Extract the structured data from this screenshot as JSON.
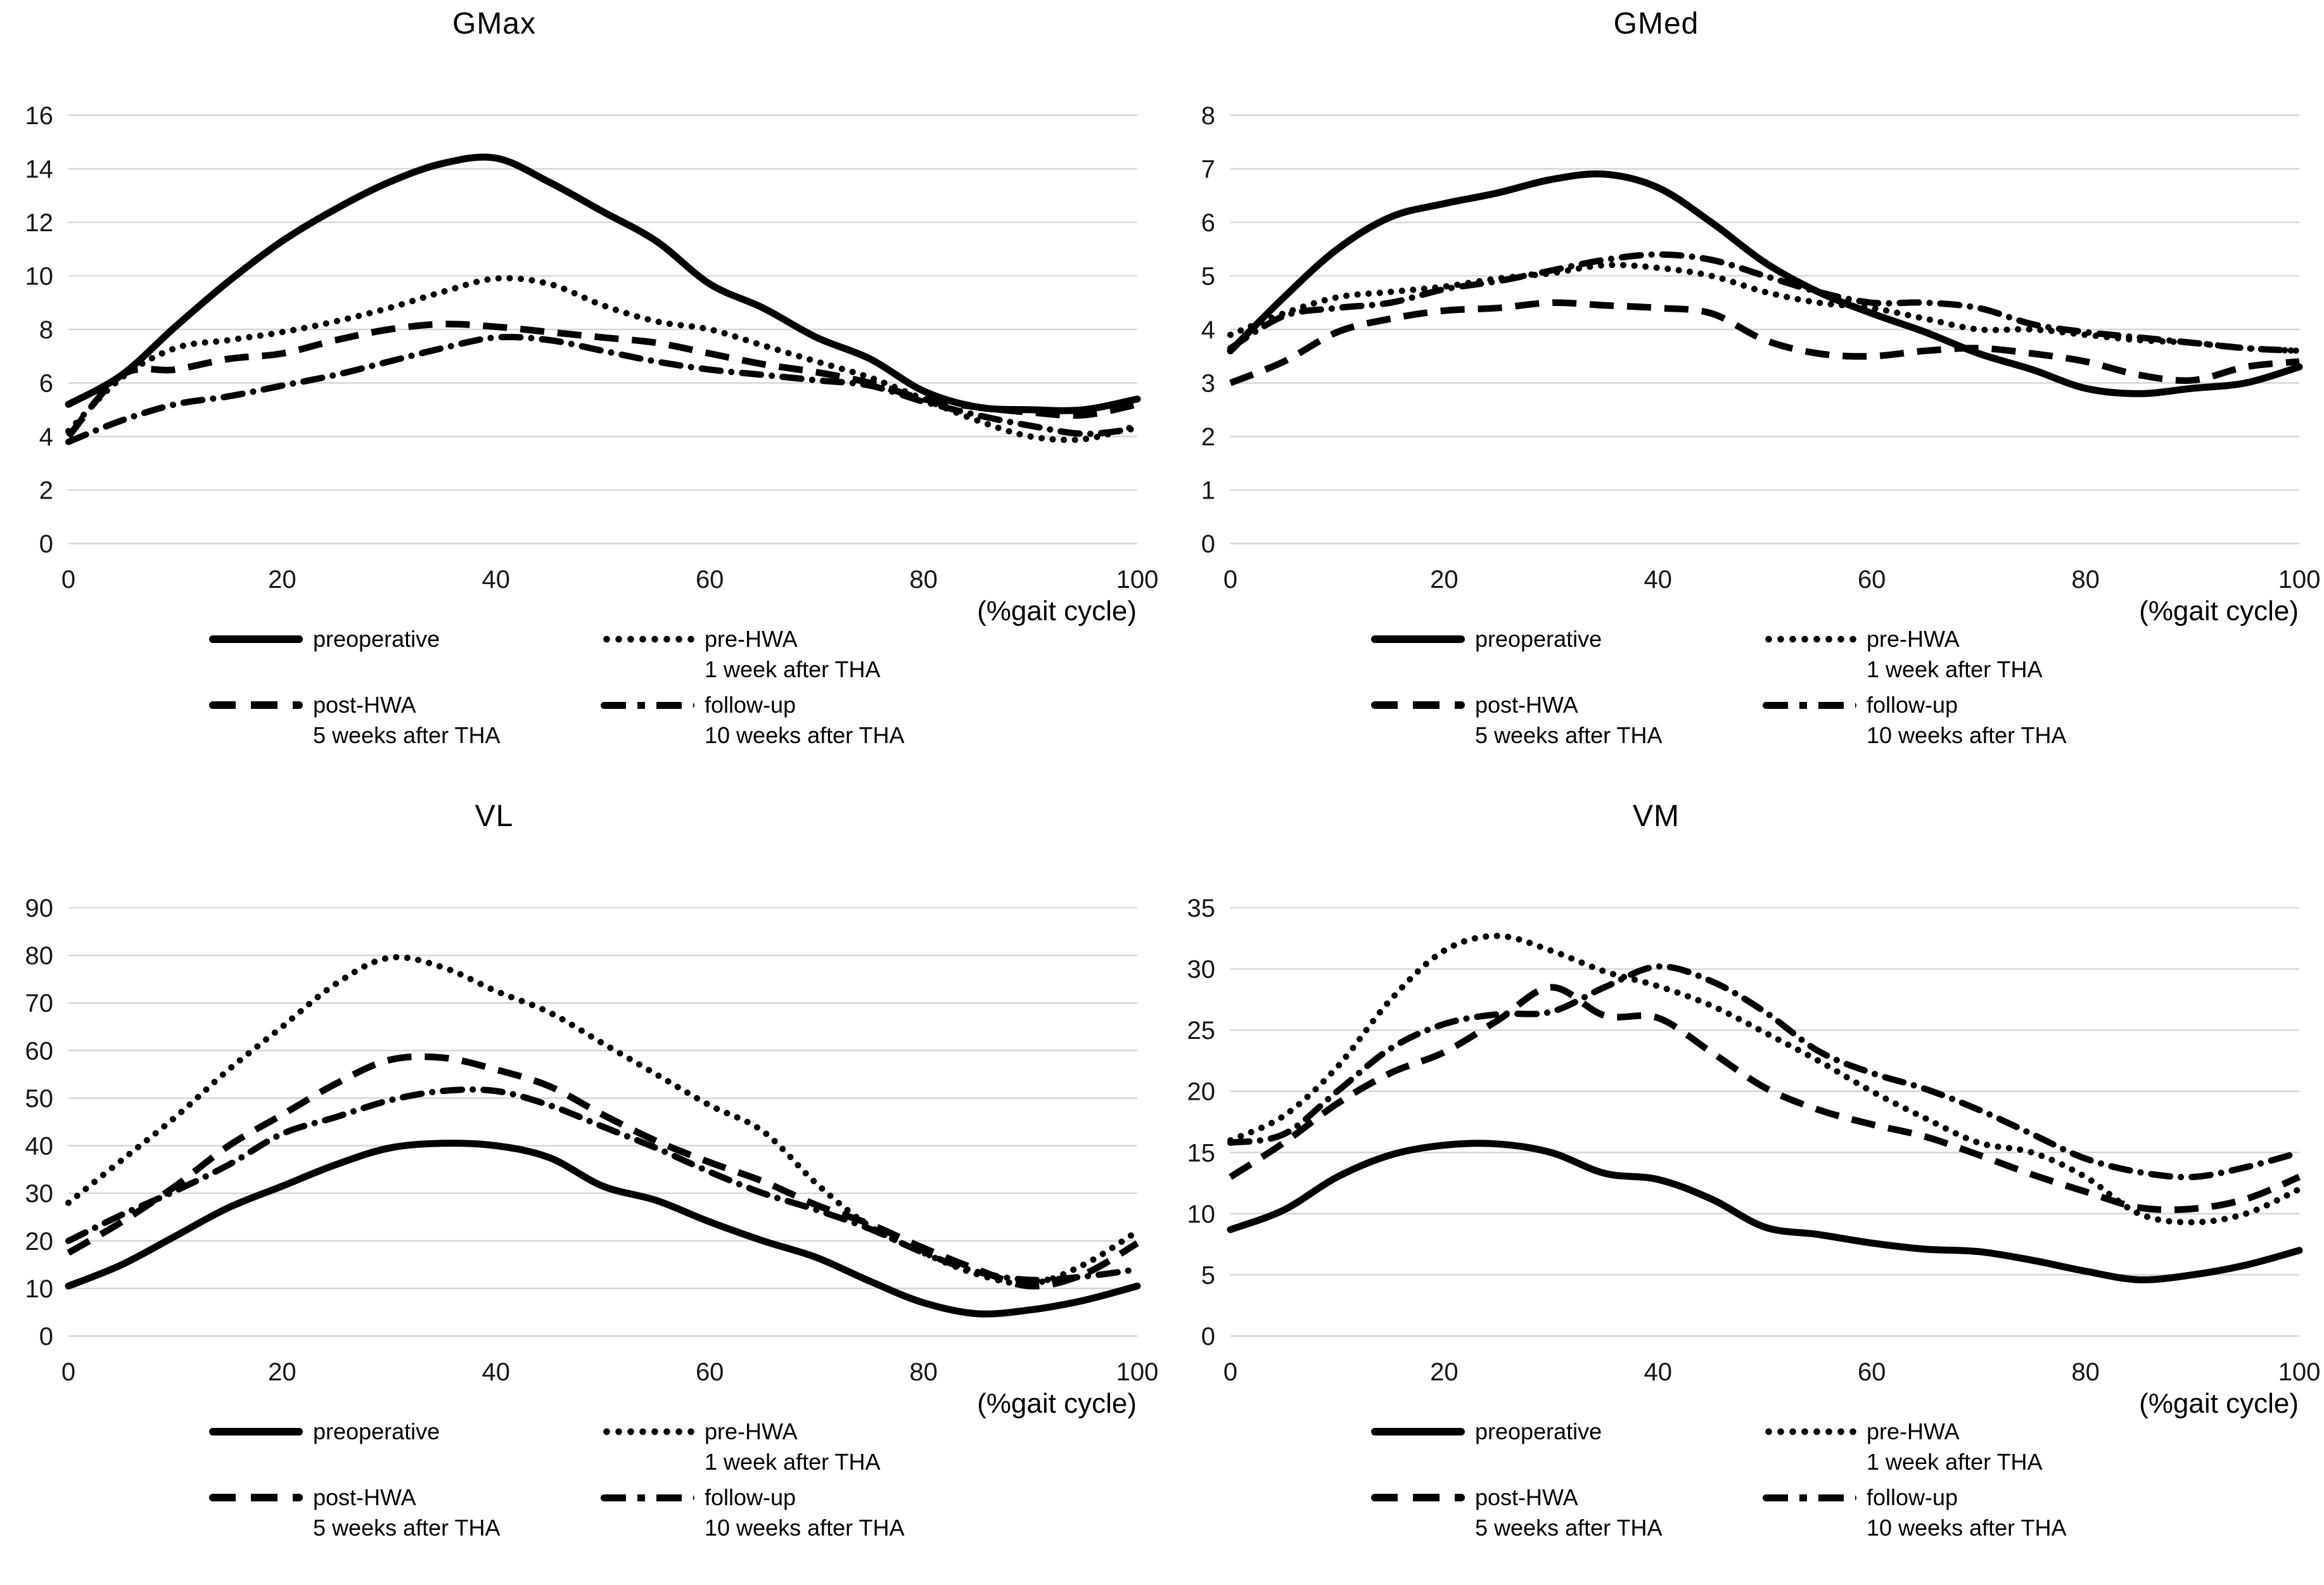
{
  "xaxis_label": "(%gait cycle)",
  "colors": {
    "line": "#000000",
    "gridline": "#d6d6d6",
    "background": "#ffffff"
  },
  "legend": {
    "items": [
      {
        "label": "preoperative",
        "sublabel": "",
        "style": "solid"
      },
      {
        "label": "pre-HWA",
        "sublabel": "1 week after THA",
        "style": "dotted"
      },
      {
        "label": "post-HWA",
        "sublabel": "5 weeks after THA",
        "style": "dashed"
      },
      {
        "label": "follow-up",
        "sublabel": "10 weeks after THA",
        "style": "dashdot"
      }
    ]
  },
  "chart_data": [
    {
      "type": "line",
      "title": "GMax",
      "xlabel": "(%gait cycle)",
      "ylabel": "",
      "grid": true,
      "legend_position": "bottom",
      "xlim": [
        0,
        100
      ],
      "x_ticks": [
        0,
        20,
        40,
        60,
        80,
        100
      ],
      "ylim": [
        0,
        16
      ],
      "ytick_step": 2,
      "x": [
        0,
        5,
        10,
        15,
        20,
        25,
        30,
        35,
        40,
        45,
        50,
        55,
        60,
        65,
        70,
        75,
        80,
        85,
        90,
        95,
        100
      ],
      "series": [
        {
          "name": "preoperative",
          "style": "solid",
          "values": [
            5.2,
            6.3,
            8.1,
            9.8,
            11.3,
            12.5,
            13.5,
            14.2,
            14.4,
            13.5,
            12.4,
            11.3,
            9.7,
            8.8,
            7.7,
            6.9,
            5.7,
            5.1,
            5.0,
            5.0,
            5.4
          ]
        },
        {
          "name": "pre-HWA",
          "style": "dotted",
          "values": [
            4.2,
            6.2,
            7.3,
            7.6,
            7.9,
            8.3,
            8.8,
            9.4,
            9.9,
            9.7,
            8.9,
            8.3,
            8.0,
            7.4,
            6.8,
            6.2,
            5.4,
            4.6,
            4.0,
            3.9,
            4.4
          ]
        },
        {
          "name": "post-HWA",
          "style": "dashed",
          "values": [
            4.0,
            6.3,
            6.5,
            6.9,
            7.1,
            7.6,
            8.0,
            8.2,
            8.1,
            7.9,
            7.7,
            7.5,
            7.1,
            6.7,
            6.4,
            6.0,
            5.4,
            5.1,
            4.9,
            4.8,
            5.2
          ]
        },
        {
          "name": "follow-up",
          "style": "dashdot",
          "values": [
            3.8,
            4.6,
            5.2,
            5.5,
            5.9,
            6.3,
            6.8,
            7.3,
            7.7,
            7.6,
            7.2,
            6.8,
            6.5,
            6.3,
            6.1,
            5.9,
            5.3,
            4.8,
            4.4,
            4.1,
            4.3
          ]
        }
      ]
    },
    {
      "type": "line",
      "title": "GMed",
      "xlabel": "(%gait cycle)",
      "ylabel": "",
      "grid": true,
      "legend_position": "bottom",
      "xlim": [
        0,
        100
      ],
      "x_ticks": [
        0,
        20,
        40,
        60,
        80,
        100
      ],
      "ylim": [
        0,
        8
      ],
      "ytick_step": 1,
      "x": [
        0,
        5,
        10,
        15,
        20,
        25,
        30,
        35,
        40,
        45,
        50,
        55,
        60,
        65,
        70,
        75,
        80,
        85,
        90,
        95,
        100
      ],
      "series": [
        {
          "name": "preoperative",
          "style": "solid",
          "values": [
            3.6,
            4.6,
            5.5,
            6.1,
            6.35,
            6.55,
            6.8,
            6.9,
            6.65,
            6.0,
            5.25,
            4.7,
            4.3,
            3.95,
            3.55,
            3.25,
            2.9,
            2.8,
            2.9,
            3.0,
            3.3
          ]
        },
        {
          "name": "pre-HWA",
          "style": "dotted",
          "values": [
            3.9,
            4.3,
            4.6,
            4.7,
            4.8,
            4.95,
            5.05,
            5.2,
            5.15,
            5.0,
            4.7,
            4.5,
            4.4,
            4.2,
            4.0,
            4.0,
            3.9,
            3.8,
            3.75,
            3.65,
            3.6
          ]
        },
        {
          "name": "post-HWA",
          "style": "dashed",
          "values": [
            3.0,
            3.4,
            3.95,
            4.2,
            4.35,
            4.4,
            4.5,
            4.45,
            4.4,
            4.3,
            3.8,
            3.55,
            3.5,
            3.6,
            3.65,
            3.55,
            3.4,
            3.15,
            3.05,
            3.3,
            3.4
          ]
        },
        {
          "name": "follow-up",
          "style": "dashdot",
          "values": [
            3.65,
            4.25,
            4.4,
            4.5,
            4.75,
            4.9,
            5.1,
            5.3,
            5.4,
            5.3,
            5.0,
            4.7,
            4.5,
            4.5,
            4.4,
            4.1,
            3.95,
            3.85,
            3.75,
            3.65,
            3.6
          ]
        }
      ]
    },
    {
      "type": "line",
      "title": "VL",
      "xlabel": "(%gait cycle)",
      "ylabel": "",
      "grid": true,
      "legend_position": "bottom",
      "xlim": [
        0,
        100
      ],
      "x_ticks": [
        0,
        20,
        40,
        60,
        80,
        100
      ],
      "ylim": [
        0,
        90
      ],
      "ytick_step": 10,
      "x": [
        0,
        5,
        10,
        15,
        20,
        25,
        30,
        35,
        40,
        45,
        50,
        55,
        60,
        65,
        70,
        75,
        80,
        85,
        90,
        95,
        100
      ],
      "series": [
        {
          "name": "preoperative",
          "style": "solid",
          "values": [
            10.5,
            15,
            21,
            27,
            31.5,
            36,
            39.5,
            40.5,
            40,
            37.5,
            31.5,
            28.5,
            24,
            20,
            16.5,
            11.5,
            7,
            4.7,
            5.5,
            7.5,
            10.5
          ]
        },
        {
          "name": "pre-HWA",
          "style": "dotted",
          "values": [
            28,
            37,
            46,
            56,
            65,
            74,
            79.5,
            77.5,
            72.5,
            68,
            61.5,
            55,
            48.5,
            43,
            32,
            23,
            17.5,
            13,
            11,
            15,
            22
          ]
        },
        {
          "name": "post-HWA",
          "style": "dashed",
          "values": [
            17.5,
            24,
            31.5,
            40,
            46.5,
            53,
            58,
            58.5,
            56,
            52.5,
            46.5,
            41,
            36.5,
            32.5,
            27.5,
            23.5,
            18.5,
            14,
            10.5,
            13,
            19.5
          ]
        },
        {
          "name": "follow-up",
          "style": "dashdot",
          "values": [
            20,
            25.5,
            30.5,
            36,
            42.5,
            46,
            49.5,
            51.5,
            51.5,
            48.5,
            44,
            39.5,
            34.5,
            30,
            26.5,
            22.5,
            17.5,
            13.5,
            11.8,
            12.5,
            14
          ]
        }
      ]
    },
    {
      "type": "line",
      "title": "VM",
      "xlabel": "(%gait cycle)",
      "ylabel": "",
      "grid": true,
      "legend_position": "bottom",
      "xlim": [
        0,
        100
      ],
      "x_ticks": [
        0,
        20,
        40,
        60,
        80,
        100
      ],
      "ylim": [
        0,
        35
      ],
      "ytick_step": 5,
      "x": [
        0,
        5,
        10,
        15,
        20,
        25,
        30,
        35,
        40,
        45,
        50,
        55,
        60,
        65,
        70,
        75,
        80,
        85,
        90,
        95,
        100
      ],
      "series": [
        {
          "name": "preoperative",
          "style": "solid",
          "values": [
            8.7,
            10.3,
            13,
            14.8,
            15.6,
            15.7,
            15.0,
            13.3,
            12.8,
            11.2,
            8.9,
            8.3,
            7.6,
            7.1,
            6.9,
            6.2,
            5.3,
            4.6,
            5.0,
            5.8,
            7.0
          ]
        },
        {
          "name": "pre-HWA",
          "style": "dotted",
          "values": [
            16,
            18,
            22,
            27.5,
            31.5,
            32.7,
            31.5,
            29.8,
            28.6,
            27,
            24.8,
            22.5,
            20,
            17.8,
            15.8,
            15,
            13,
            10,
            9.3,
            10,
            12
          ]
        },
        {
          "name": "post-HWA",
          "style": "dashed",
          "values": [
            13,
            15.8,
            19,
            21.5,
            23.2,
            25.8,
            28.5,
            26.2,
            26,
            23.2,
            20.3,
            18.5,
            17.3,
            16.3,
            14.8,
            13.2,
            11.8,
            10.5,
            10.4,
            11.2,
            13
          ]
        },
        {
          "name": "follow-up",
          "style": "dashdot",
          "values": [
            15.8,
            16.5,
            20,
            23.5,
            25.5,
            26.3,
            26.5,
            28.5,
            30.2,
            29,
            26.5,
            23.3,
            21.5,
            20.2,
            18.5,
            16.5,
            14.5,
            13.4,
            13,
            13.8,
            15
          ]
        }
      ]
    }
  ]
}
